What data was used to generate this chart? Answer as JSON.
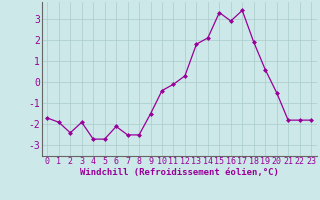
{
  "x": [
    0,
    1,
    2,
    3,
    4,
    5,
    6,
    7,
    8,
    9,
    10,
    11,
    12,
    13,
    14,
    15,
    16,
    17,
    18,
    19,
    20,
    21,
    22,
    23
  ],
  "y": [
    -1.7,
    -1.9,
    -2.4,
    -1.9,
    -2.7,
    -2.7,
    -2.1,
    -2.5,
    -2.5,
    -1.5,
    -0.4,
    -0.1,
    0.3,
    1.8,
    2.1,
    3.3,
    2.9,
    3.4,
    1.9,
    0.6,
    -0.5,
    -1.8,
    -1.8,
    -1.8
  ],
  "line_color": "#990099",
  "marker": "D",
  "marker_size": 2,
  "background_color": "#cce8e8",
  "grid_color": "#aacccc",
  "xlabel": "Windchill (Refroidissement éolien,°C)",
  "xlim": [
    -0.5,
    23.5
  ],
  "ylim": [
    -3.5,
    3.8
  ],
  "yticks": [
    -3,
    -2,
    -1,
    0,
    1,
    2,
    3
  ],
  "xticks": [
    0,
    1,
    2,
    3,
    4,
    5,
    6,
    7,
    8,
    9,
    10,
    11,
    12,
    13,
    14,
    15,
    16,
    17,
    18,
    19,
    20,
    21,
    22,
    23
  ],
  "label_color": "#990099",
  "axis_color": "#666666",
  "tick_fontsize": 6,
  "xlabel_fontsize": 6.5,
  "ytick_fontsize": 7
}
